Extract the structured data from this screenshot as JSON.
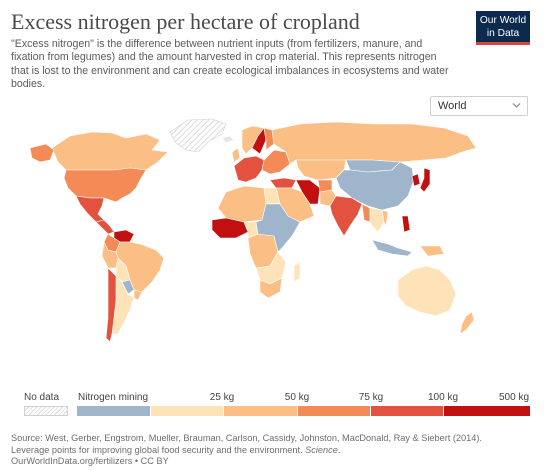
{
  "title": "Excess nitrogen per hectare of cropland",
  "subtitle": "\"Excess nitrogen\" is the difference between nutrient inputs (from fertilizers, manure, and fixation from legumes) and the amount harvested in crop material. This represents nitrogen that is lost to the environment and can create ecological imbalances in ecosystems and water bodies.",
  "logo": {
    "line1": "Our World",
    "line2": "in Data"
  },
  "region_selector": {
    "value": "World",
    "icon": "chevron-down-icon"
  },
  "legend": {
    "no_data_label": "No data",
    "bins": [
      {
        "label": "Nitrogen mining",
        "color": "#9fb5cb"
      },
      {
        "label": "25 kg",
        "color": "#fde3b7"
      },
      {
        "label": "50 kg",
        "color": "#fbbe85"
      },
      {
        "label": "75 kg",
        "color": "#f48b57"
      },
      {
        "label": "100 kg",
        "color": "#e3513f"
      },
      {
        "label": "500 kg",
        "color": "#c21010"
      }
    ],
    "tick_labels": [
      "25 kg",
      "50 kg",
      "75 kg",
      "100 kg",
      "500 kg"
    ]
  },
  "source": {
    "line1": "Source: West, Gerber, Engstrom, Mueller, Brauman, Carlson, Cassidy, Johnston, MacDonald, Ray & Siebert (2014).",
    "line2_plain": "Leverage points for improving global food security and the environment. ",
    "line2_italic": "Science",
    "line2_end": ".",
    "line3": "OurWorldInData.org/fertilizers • CC BY"
  },
  "colors": {
    "mining": "#9fb5cb",
    "bin_0_25": "#fde3b7",
    "bin_25_50": "#fbbe85",
    "bin_50_75": "#f48b57",
    "bin_75_100": "#e3513f",
    "bin_100_500": "#c21010",
    "no_data": "#e6e6e6"
  },
  "regions": [
    {
      "name": "Canada",
      "color": "#fbbe85"
    },
    {
      "name": "United States",
      "color": "#f48b57"
    },
    {
      "name": "Mexico",
      "color": "#e3513f"
    },
    {
      "name": "Central America",
      "color": "#e3513f"
    },
    {
      "name": "Venezuela",
      "color": "#c21010"
    },
    {
      "name": "Colombia",
      "color": "#f48b57"
    },
    {
      "name": "Brazil",
      "color": "#fbbe85"
    },
    {
      "name": "Peru",
      "color": "#fbbe85"
    },
    {
      "name": "Bolivia",
      "color": "#fde3b7"
    },
    {
      "name": "Paraguay",
      "color": "#9fb5cb"
    },
    {
      "name": "Argentina",
      "color": "#fde3b7"
    },
    {
      "name": "Chile",
      "color": "#e3513f"
    },
    {
      "name": "Uruguay",
      "color": "#fbbe85"
    },
    {
      "name": "Greenland",
      "color": "#e6e6e6"
    },
    {
      "name": "Iceland",
      "color": "#fbbe85"
    },
    {
      "name": "Norway",
      "color": "#c21010"
    },
    {
      "name": "Sweden",
      "color": "#f48b57"
    },
    {
      "name": "Finland",
      "color": "#fbbe85"
    },
    {
      "name": "United Kingdom",
      "color": "#e3513f"
    },
    {
      "name": "Western Europe",
      "color": "#f48b57"
    },
    {
      "name": "Eastern Europe",
      "color": "#fbbe85"
    },
    {
      "name": "Russia",
      "color": "#fbbe85"
    },
    {
      "name": "Kazakhstan",
      "color": "#9fb5cb"
    },
    {
      "name": "Mongolia",
      "color": "#9fb5cb"
    },
    {
      "name": "China",
      "color": "#c21010"
    },
    {
      "name": "Korea",
      "color": "#c21010"
    },
    {
      "name": "Japan",
      "color": "#e3513f"
    },
    {
      "name": "Turkey",
      "color": "#fbbe85"
    },
    {
      "name": "Middle East",
      "color": "#c21010"
    },
    {
      "name": "Iran",
      "color": "#f48b57"
    },
    {
      "name": "Afghanistan",
      "color": "#fbbe85"
    },
    {
      "name": "Pakistan",
      "color": "#e3513f"
    },
    {
      "name": "India",
      "color": "#f48b57"
    },
    {
      "name": "Myanmar",
      "color": "#fde3b7"
    },
    {
      "name": "Southeast Asia",
      "color": "#fbbe85"
    },
    {
      "name": "Vietnam",
      "color": "#c21010"
    },
    {
      "name": "Philippines",
      "color": "#9fb5cb"
    },
    {
      "name": "Indonesia",
      "color": "#fbbe85"
    },
    {
      "name": "New Guinea",
      "color": "#fbbe85"
    },
    {
      "name": "North Africa",
      "color": "#fde3b7"
    },
    {
      "name": "Egypt",
      "color": "#c21010"
    },
    {
      "name": "West Africa",
      "color": "#fde3b7"
    },
    {
      "name": "Nigeria",
      "color": "#fbbe85"
    },
    {
      "name": "Central Africa",
      "color": "#9fb5cb"
    },
    {
      "name": "East Africa",
      "color": "#fde3b7"
    },
    {
      "name": "Southern Africa",
      "color": "#fbbe85"
    },
    {
      "name": "South Africa",
      "color": "#fde3b7"
    },
    {
      "name": "Madagascar",
      "color": "#fde3b7"
    },
    {
      "name": "Australia",
      "color": "#fbbe85"
    },
    {
      "name": "New Zealand",
      "color": "#c21010"
    }
  ]
}
